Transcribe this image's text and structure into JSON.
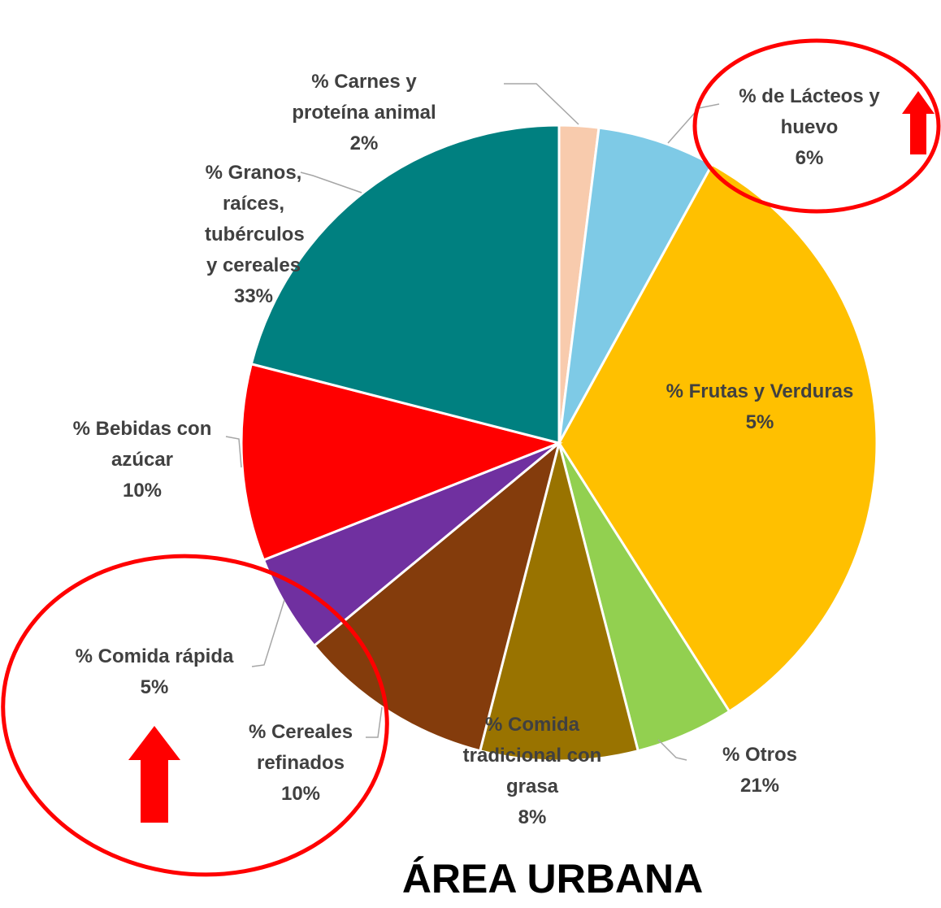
{
  "chart_data": {
    "type": "pie",
    "title": "ÁREA URBANA",
    "categories": [
      "% Carnes y proteína animal",
      "% de Lácteos y huevo",
      "% Granos, raíces, tubérculos y cereales",
      "%  Frutas y Verduras",
      "% Comida tradicional con grasa",
      "% Cereales refinados",
      "% Comida rápida",
      "% Bebidas con azúcar",
      "% Otros"
    ],
    "values": [
      2,
      6,
      33,
      5,
      8,
      10,
      5,
      10,
      21
    ],
    "value_labels": [
      "2%",
      "6%",
      "33%",
      "5%",
      "8%",
      "10%",
      "5%",
      "10%",
      "21%"
    ],
    "colors": [
      "#f8cbad",
      "#7ecae6",
      "#ffc000",
      "#92d050",
      "#997300",
      "#843c0c",
      "#7030a0",
      "#ff0000",
      "#008080"
    ]
  }
}
